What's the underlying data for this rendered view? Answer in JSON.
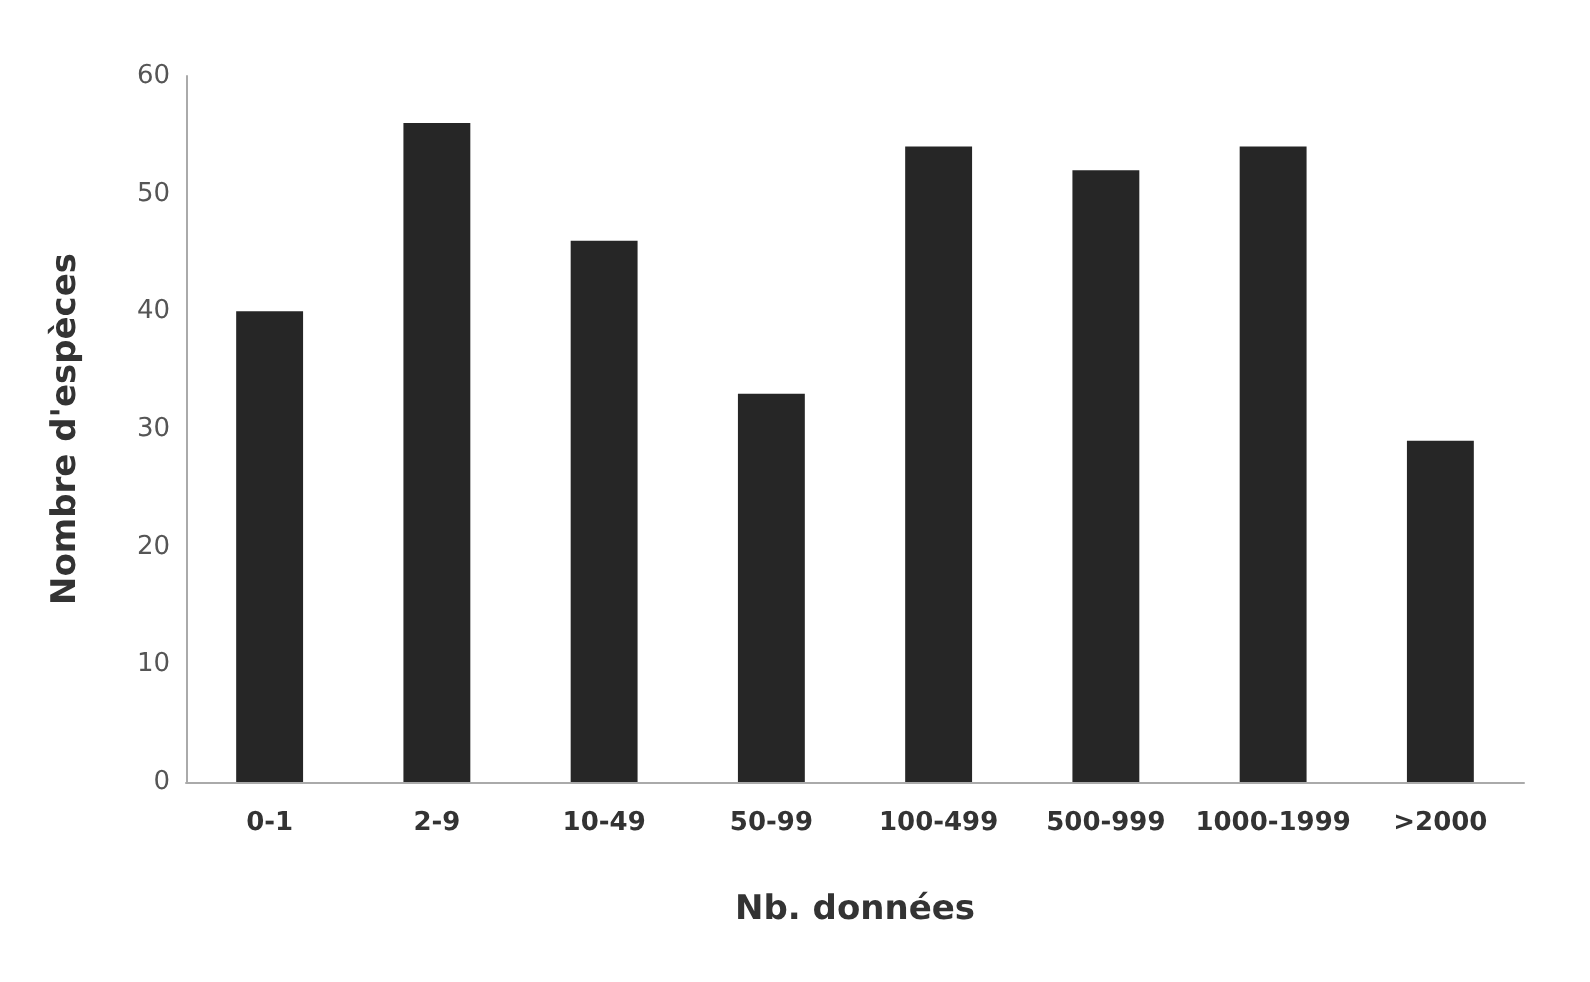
{
  "chart_data": {
    "type": "bar",
    "xlabel": "Nb. données",
    "ylabel": "Nombre d'espèces",
    "categories": [
      "0-1",
      "2-9",
      "10-49",
      "50-99",
      "100-499",
      "500-999",
      "1000-1999",
      ">2000"
    ],
    "values": [
      40,
      56,
      46,
      33,
      54,
      52,
      54,
      29
    ],
    "color": "#262626",
    "ylim": [
      0,
      60
    ],
    "yticks": [
      0,
      10,
      20,
      30,
      40,
      50,
      60
    ],
    "grid": false
  }
}
